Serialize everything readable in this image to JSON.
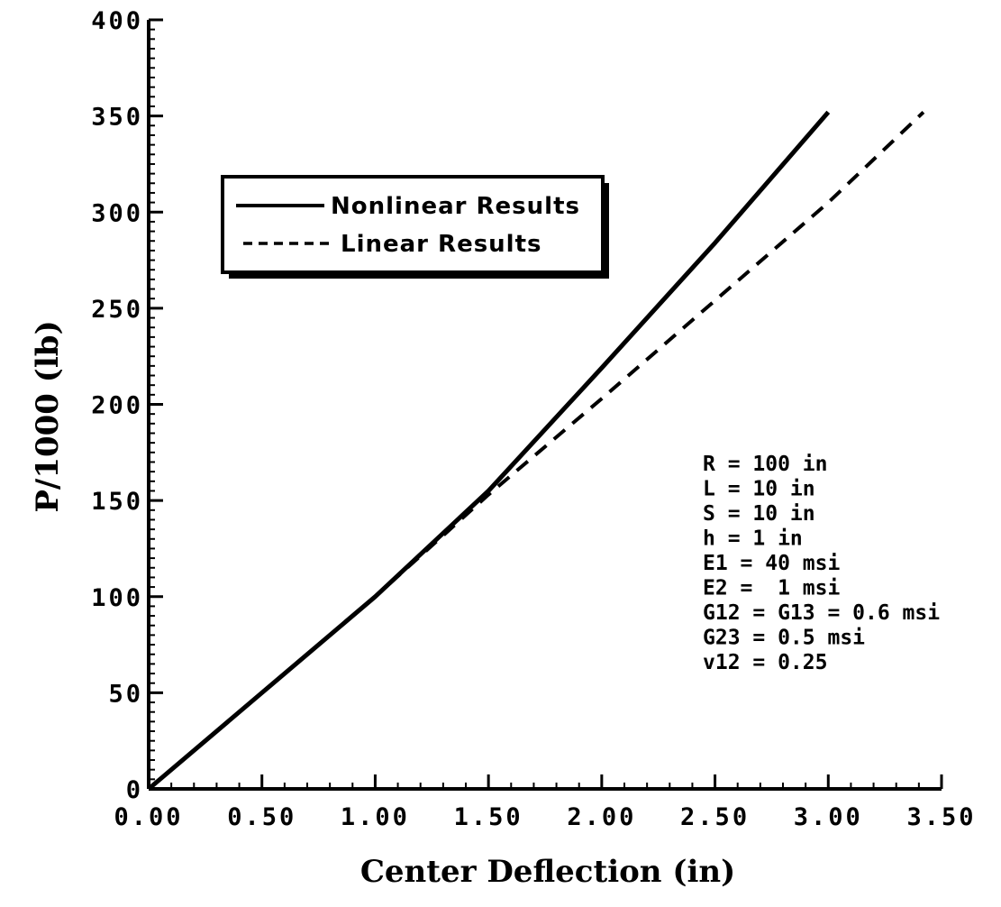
{
  "chart_data": {
    "type": "line",
    "xlabel": "Center Deflection (in)",
    "ylabel": "P/1000 (lb)",
    "xlim": [
      0,
      3.5
    ],
    "ylim": [
      0,
      400
    ],
    "x_ticks": [
      "0.00",
      "0.50",
      "1.00",
      "1.50",
      "2.00",
      "2.50",
      "3.00",
      "3.50"
    ],
    "y_ticks": [
      "0",
      "50",
      "100",
      "150",
      "200",
      "250",
      "300",
      "350",
      "400"
    ],
    "grid": false,
    "legend_position": "top-left",
    "series": [
      {
        "name": "Nonlinear Results",
        "style": "solid",
        "x": [
          0,
          0.5,
          1.0,
          1.5,
          2.0,
          2.5,
          3.0
        ],
        "y": [
          0,
          50,
          100,
          155,
          219,
          284,
          352
        ]
      },
      {
        "name": "Linear Results",
        "style": "dashed",
        "x": [
          0,
          0.5,
          1.0,
          1.5,
          2.0,
          2.5,
          3.0,
          3.42
        ],
        "y": [
          0,
          50,
          100,
          153,
          203,
          254,
          305,
          352
        ]
      }
    ],
    "annotations": [
      "R = 100 in",
      "L = 10 in",
      "S = 10 in",
      "h = 1 in",
      "E1 = 40 msi",
      "E2 =  1 msi",
      "G12 = G13 = 0.6 msi",
      "G23 = 0.5 msi",
      "v12 = 0.25"
    ]
  },
  "colors": {
    "line": "#000000",
    "background": "#ffffff"
  }
}
